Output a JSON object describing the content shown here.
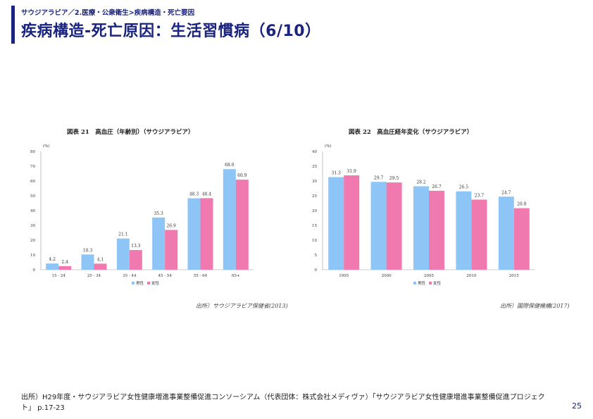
{
  "header": {
    "breadcrumb": "サウジアラビア／2.医療・公衆衛生>疾病構造・死亡要因",
    "title": "疾病構造-死亡原因：生活習慣病（6/10）"
  },
  "colors": {
    "accent": "#1a237e",
    "male": "#8ec5f7",
    "female": "#f07ab0"
  },
  "charts": [
    {
      "title": "図表 21　高血圧（年齢別）（サウジアラビア）",
      "source": "出所）サウジアラビア保健省(2013)"
    },
    {
      "title": "図表 22　高血圧経年変化（サウジアラビア）",
      "source": "出所）国際保健機構(2017)"
    }
  ],
  "chart_data": [
    {
      "type": "bar",
      "title": "図表 21　高血圧（年齢別）（サウジアラビア）",
      "unit": "(%)",
      "categories": [
        "15 - 24",
        "25 - 34",
        "35 - 44",
        "45 - 54",
        "55 - 64",
        "65+"
      ],
      "series": [
        {
          "name": "男性",
          "values": [
            4.2,
            10.3,
            21.1,
            35.3,
            48.3,
            68.0
          ]
        },
        {
          "name": "女性",
          "values": [
            2.4,
            4.1,
            13.3,
            26.9,
            48.4,
            60.9
          ]
        }
      ],
      "labels": [
        [
          "4.2",
          "10.3",
          "21.1",
          "35.3",
          "48.3",
          "68.0"
        ],
        [
          "2.4",
          "4.1",
          "13.3",
          "26.9",
          "48.4",
          "60.9"
        ]
      ],
      "yticks": [
        "0",
        "10",
        "20",
        "30",
        "40",
        "50",
        "60",
        "70",
        "80"
      ],
      "ylim": [
        0,
        80
      ],
      "legend": "bottom"
    },
    {
      "type": "bar",
      "title": "図表 22　高血圧経年変化（サウジアラビア）",
      "unit": "(%)",
      "categories": [
        "1995",
        "2000",
        "2005",
        "2010",
        "2015"
      ],
      "series": [
        {
          "name": "男性",
          "values": [
            31.3,
            29.7,
            28.2,
            26.5,
            24.7
          ]
        },
        {
          "name": "女性",
          "values": [
            31.9,
            29.5,
            26.7,
            23.7,
            20.8
          ]
        }
      ],
      "labels": [
        [
          "31.3",
          "29.7",
          "28.2",
          "26.5",
          "24.7"
        ],
        [
          "31.9",
          "29.5",
          "26.7",
          "23.7",
          "20.8"
        ]
      ],
      "yticks": [
        "0",
        "5",
        "10",
        "15",
        "20",
        "25",
        "30",
        "35",
        "40"
      ],
      "ylim": [
        0,
        40
      ],
      "legend": "bottom"
    }
  ],
  "footer": {
    "source": "出所）H29年度・サウジアラビア女性健康増進事業整備促進コンソーシアム（代表団体：株式会社メディヴァ）「サウジアラビア女性健康増進事業整備促進プロジェクト」 p.17-23",
    "page_number": "25"
  }
}
